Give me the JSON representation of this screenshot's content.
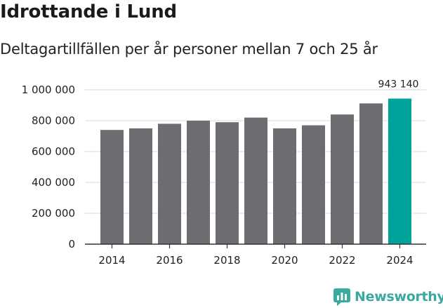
{
  "header": {
    "title": "Idrottande i Lund",
    "subtitle": "Deltagartillfällen per år personer mellan 7 och 25 år"
  },
  "brand": {
    "name": "Newsworthy"
  },
  "colors": {
    "bar": "#6d6c71",
    "highlight": "#00a39a",
    "grid": "#d9d9d9",
    "axis": "#333333",
    "brand": "#3aa99f"
  },
  "chart_data": {
    "type": "bar",
    "title": "Idrottande i Lund",
    "subtitle": "Deltagartillfällen per år personer mellan 7 och 25 år",
    "xlabel": "",
    "ylabel": "",
    "categories": [
      "2014",
      "2015",
      "2016",
      "2017",
      "2018",
      "2019",
      "2020",
      "2021",
      "2022",
      "2023",
      "2024"
    ],
    "values": [
      740000,
      750000,
      780000,
      800000,
      790000,
      820000,
      750000,
      770000,
      840000,
      912000,
      943140
    ],
    "highlight_index": 10,
    "highlight_label": "943 140",
    "ylim": [
      0,
      1000000
    ],
    "yticks": [
      0,
      200000,
      400000,
      600000,
      800000,
      1000000
    ],
    "ytick_labels": [
      "0",
      "200 000",
      "400 000",
      "600 000",
      "800 000",
      "1 000 000"
    ],
    "xtick_labels": [
      "2014",
      "2016",
      "2018",
      "2020",
      "2022",
      "2024"
    ],
    "grid": true
  }
}
